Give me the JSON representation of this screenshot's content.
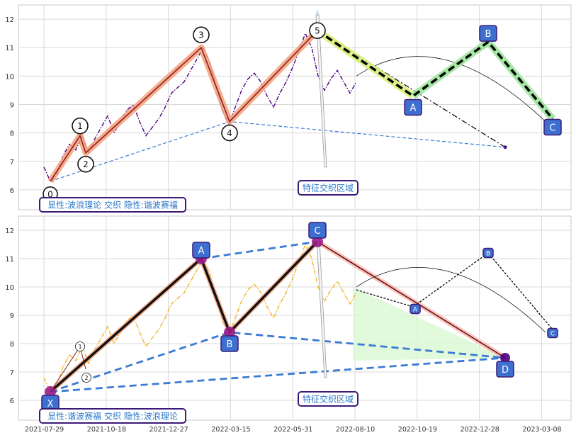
{
  "colors": {
    "panel_bg": "#ffffff",
    "grid": "#d9d9d9",
    "price_top": "#4b0082",
    "price_bottom": "#f0b323",
    "wave_main": "#8b2020",
    "wave_glow": "#f4a07a",
    "blue_dash": "#3a7bd5",
    "harmonic_dash": "#000000",
    "label_blue": "#3d6fd0",
    "label_border": "#3c1a78",
    "green_glow": "#9be59b",
    "lime_glow": "#d8f07a",
    "fill_green": "#d9f9d2",
    "fill_red": "#f7b8b0"
  },
  "chart_data": [
    {
      "type": "line",
      "panel": "top",
      "ylim": [
        5.3,
        12.5
      ],
      "yticks": [
        "6",
        "7",
        "8",
        "9",
        "10",
        "11",
        "12"
      ],
      "price_series": [
        6.8,
        6.3,
        6.5,
        7.2,
        7.6,
        7.4,
        7.9,
        7.3,
        7.8,
        8.2,
        8.6,
        8.0,
        8.4,
        8.8,
        9.0,
        8.4,
        7.9,
        8.2,
        8.5,
        8.9,
        9.4,
        9.6,
        9.8,
        10.2,
        10.6,
        11.0,
        10.5,
        9.6,
        8.8,
        8.3,
        8.9,
        9.5,
        9.9,
        10.1,
        9.8,
        9.3,
        8.9,
        9.4,
        9.8,
        10.3,
        10.9,
        11.5,
        11.0,
        10.0,
        9.5,
        9.9,
        10.2,
        9.8,
        9.4,
        9.8
      ],
      "wave_labels": [
        "0",
        "1",
        "2",
        "3",
        "4",
        "5"
      ],
      "wave_values": [
        6.3,
        7.9,
        7.3,
        11.0,
        8.4,
        11.6
      ],
      "abc_labels": [
        "A",
        "B",
        "C"
      ],
      "abc_values": [
        9.3,
        11.2,
        8.5
      ],
      "annotation": "特征交织区域",
      "caption": "显性:波浪理论 交织 隐性:谐波赛福"
    },
    {
      "type": "line",
      "panel": "bottom",
      "ylim": [
        5.3,
        12.5
      ],
      "yticks": [
        "6",
        "7",
        "8",
        "9",
        "10",
        "11",
        "12"
      ],
      "xticks": [
        "2021-07-29",
        "2021-10-18",
        "2021-12-27",
        "2022-03-15",
        "2022-05-31",
        "2022-08-10",
        "2022-10-19",
        "2022-12-28",
        "2023-03-08"
      ],
      "harmonic_labels": [
        "X",
        "A",
        "B",
        "C",
        "D"
      ],
      "harmonic_values": [
        6.3,
        11.0,
        8.4,
        11.6,
        7.5
      ],
      "minor_labels": [
        "1",
        "2"
      ],
      "minor_values": [
        7.9,
        7.1
      ],
      "abc_labels": [
        "A",
        "B",
        "C"
      ],
      "abc_values": [
        9.3,
        11.2,
        8.5
      ],
      "annotation": "特征交织区域",
      "caption": "显性:谐波赛福 交织 隐性:波浪理论"
    }
  ]
}
